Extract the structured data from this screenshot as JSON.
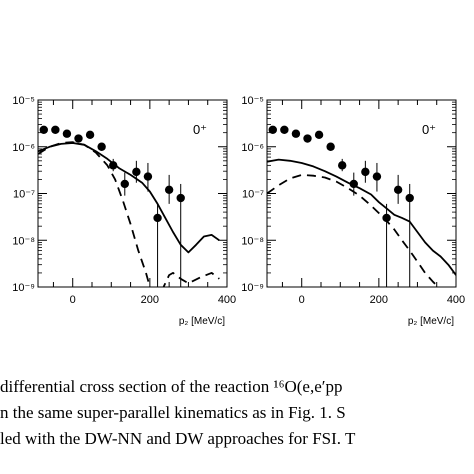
{
  "chart_data": [
    {
      "type": "scatter",
      "state_label": "0⁺",
      "xlabel": "p₂ [MeV/c]",
      "xlim": [
        -90,
        400
      ],
      "ylim_log10": [
        -9,
        -5
      ],
      "x_ticks": [
        "0",
        "200",
        "400"
      ],
      "y_ticks": [
        "10⁻⁹",
        "10⁻⁸",
        "10⁻⁷",
        "10⁻⁶",
        "10⁻⁵"
      ],
      "points": [
        {
          "x": -75,
          "y": 2.3e-06,
          "err": [
            2.3e-06,
            2.3e-06
          ]
        },
        {
          "x": -45,
          "y": 2.3e-06,
          "err": [
            2.3e-06,
            2.3e-06
          ]
        },
        {
          "x": -15,
          "y": 1.9e-06,
          "err": [
            1.9e-06,
            1.9e-06
          ]
        },
        {
          "x": 15,
          "y": 1.5e-06,
          "err": [
            1.5e-06,
            1.5e-06
          ]
        },
        {
          "x": 45,
          "y": 1.8e-06,
          "err": [
            1.8e-06,
            1.8e-06
          ]
        },
        {
          "x": 75,
          "y": 1e-06,
          "err": [
            1e-06,
            1e-06
          ]
        },
        {
          "x": 105,
          "y": 4e-07,
          "err": [
            3e-07,
            5.5e-07
          ]
        },
        {
          "x": 135,
          "y": 1.6e-07,
          "err": [
            9e-08,
            2.8e-07
          ]
        },
        {
          "x": 165,
          "y": 2.9e-07,
          "err": [
            1.7e-07,
            5e-07
          ]
        },
        {
          "x": 195,
          "y": 2.3e-07,
          "err": [
            1.1e-07,
            4.5e-07
          ]
        },
        {
          "x": 220,
          "y": 3e-08,
          "err": [
            1e-09,
            6e-08
          ]
        },
        {
          "x": 250,
          "y": 1.2e-07,
          "err": [
            6e-08,
            2.5e-07
          ]
        },
        {
          "x": 280,
          "y": 8e-08,
          "err": [
            1e-09,
            1.6e-07
          ]
        }
      ],
      "series": [
        {
          "style": "solid",
          "x": [
            -90,
            -60,
            -30,
            0,
            30,
            60,
            90,
            120,
            150,
            180,
            200,
            220,
            240,
            260,
            280,
            300,
            320,
            340,
            360,
            380
          ],
          "y": [
            8e-07,
            1e-06,
            1.15e-06,
            1.2e-06,
            1.1e-06,
            8e-07,
            5.5e-07,
            3.5e-07,
            2.5e-07,
            1.7e-07,
            1.1e-07,
            6e-08,
            3e-08,
            1.5e-08,
            8e-09,
            5.5e-09,
            8e-09,
            1.2e-08,
            1.3e-08,
            1e-08
          ]
        },
        {
          "style": "dashed",
          "x": [
            -90,
            -60,
            -30,
            0,
            30,
            60,
            90,
            110,
            130,
            150,
            170,
            190,
            200,
            210,
            220,
            230,
            240,
            250,
            260,
            280,
            300,
            330,
            360,
            380
          ],
          "y": [
            7e-07,
            1e-06,
            1.2e-06,
            1.25e-06,
            1.1e-06,
            7.5e-07,
            4e-07,
            2e-07,
            7e-08,
            2.2e-08,
            6e-09,
            2e-09,
            1e-09,
            8e-10,
            7e-10,
            8e-10,
            1.2e-09,
            1.8e-09,
            2e-09,
            1.5e-09,
            1.2e-09,
            1.6e-09,
            2e-09,
            1.5e-09
          ]
        }
      ]
    },
    {
      "type": "scatter",
      "state_label": "0⁺",
      "xlabel": "p₂ [MeV/c]",
      "xlim": [
        -90,
        400
      ],
      "ylim_log10": [
        -9,
        -5
      ],
      "x_ticks": [
        "0",
        "200",
        "400"
      ],
      "y_ticks": [
        "10⁻⁹",
        "10⁻⁸",
        "10⁻⁷",
        "10⁻⁶",
        "10⁻⁵"
      ],
      "points": [
        {
          "x": -75,
          "y": 2.3e-06,
          "err": [
            2.3e-06,
            2.3e-06
          ]
        },
        {
          "x": -45,
          "y": 2.3e-06,
          "err": [
            2.3e-06,
            2.3e-06
          ]
        },
        {
          "x": -15,
          "y": 1.9e-06,
          "err": [
            1.9e-06,
            1.9e-06
          ]
        },
        {
          "x": 15,
          "y": 1.5e-06,
          "err": [
            1.5e-06,
            1.5e-06
          ]
        },
        {
          "x": 45,
          "y": 1.8e-06,
          "err": [
            1.8e-06,
            1.8e-06
          ]
        },
        {
          "x": 75,
          "y": 1e-06,
          "err": [
            1e-06,
            1e-06
          ]
        },
        {
          "x": 105,
          "y": 4e-07,
          "err": [
            3e-07,
            5.5e-07
          ]
        },
        {
          "x": 135,
          "y": 1.6e-07,
          "err": [
            9e-08,
            2.8e-07
          ]
        },
        {
          "x": 165,
          "y": 2.9e-07,
          "err": [
            1.7e-07,
            5e-07
          ]
        },
        {
          "x": 195,
          "y": 2.3e-07,
          "err": [
            1.1e-07,
            4.5e-07
          ]
        },
        {
          "x": 220,
          "y": 3e-08,
          "err": [
            1e-09,
            6e-08
          ]
        },
        {
          "x": 250,
          "y": 1.2e-07,
          "err": [
            6e-08,
            2.5e-07
          ]
        },
        {
          "x": 280,
          "y": 8e-08,
          "err": [
            1e-09,
            1.6e-07
          ]
        }
      ],
      "series": [
        {
          "style": "solid",
          "x": [
            -90,
            -60,
            -30,
            0,
            30,
            60,
            90,
            120,
            150,
            180,
            200,
            220,
            240,
            260,
            280,
            300,
            320,
            340,
            360,
            380,
            400
          ],
          "y": [
            4.8e-07,
            5.3e-07,
            5e-07,
            4.5e-07,
            3.8e-07,
            3e-07,
            2.3e-07,
            1.7e-07,
            1.3e-07,
            9.5e-08,
            6.5e-08,
            4.8e-08,
            3.5e-08,
            3e-08,
            2.5e-08,
            1.5e-08,
            9e-09,
            6e-09,
            4.5e-09,
            3e-09,
            1.8e-09
          ]
        },
        {
          "style": "dashed",
          "x": [
            -90,
            -60,
            -30,
            0,
            30,
            60,
            90,
            120,
            150,
            180,
            200,
            220,
            240,
            260,
            280,
            300,
            320,
            340,
            360,
            380,
            400
          ],
          "y": [
            1e-07,
            1.5e-07,
            2.1e-07,
            2.5e-07,
            2.4e-07,
            2.2e-07,
            1.8e-07,
            1.3e-07,
            9e-08,
            5.5e-08,
            3.8e-08,
            2.6e-08,
            1.7e-08,
            1e-08,
            6e-09,
            3.5e-09,
            2e-09,
            1.3e-09,
            9e-10,
            8e-10,
            8e-10
          ]
        }
      ]
    }
  ],
  "caption_lines": [
    " differential cross section of the reaction ¹⁶O(e,e′pp",
    "n the same super-parallel kinematics as in Fig. 1. S",
    "led with the DW-NN and DW approaches for FSI. T"
  ]
}
